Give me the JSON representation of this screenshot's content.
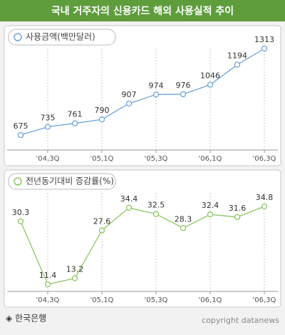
{
  "header": {
    "title": "국내 거주자의 신용카드 해외 사용실적 추이"
  },
  "chart_data": [
    {
      "type": "line",
      "categories": [
        null,
        "'04,3Q",
        null,
        "'05,1Q",
        null,
        "'05,3Q",
        null,
        "'06,1Q",
        null,
        "'06,3Q"
      ],
      "series": [
        {
          "name": "사용금액(백만달러)",
          "color": "#6fa5d8",
          "values": [
            675,
            735,
            761,
            790,
            907,
            974,
            976,
            1046,
            1194,
            1313
          ]
        }
      ]
    },
    {
      "type": "line",
      "categories": [
        null,
        "'04,3Q",
        null,
        "'05,1Q",
        null,
        "'05,3Q",
        null,
        "'06,1Q",
        null,
        "'06,3Q"
      ],
      "series": [
        {
          "name": "전년동기대비 증감률(%)",
          "color": "#8cc763",
          "values": [
            30.3,
            11.4,
            13.2,
            27.6,
            34.4,
            32.5,
            28.3,
            32.4,
            31.6,
            34.8
          ]
        }
      ]
    }
  ],
  "footer": {
    "source": "◈ 한국은행",
    "copyright": "copyright datanews"
  }
}
